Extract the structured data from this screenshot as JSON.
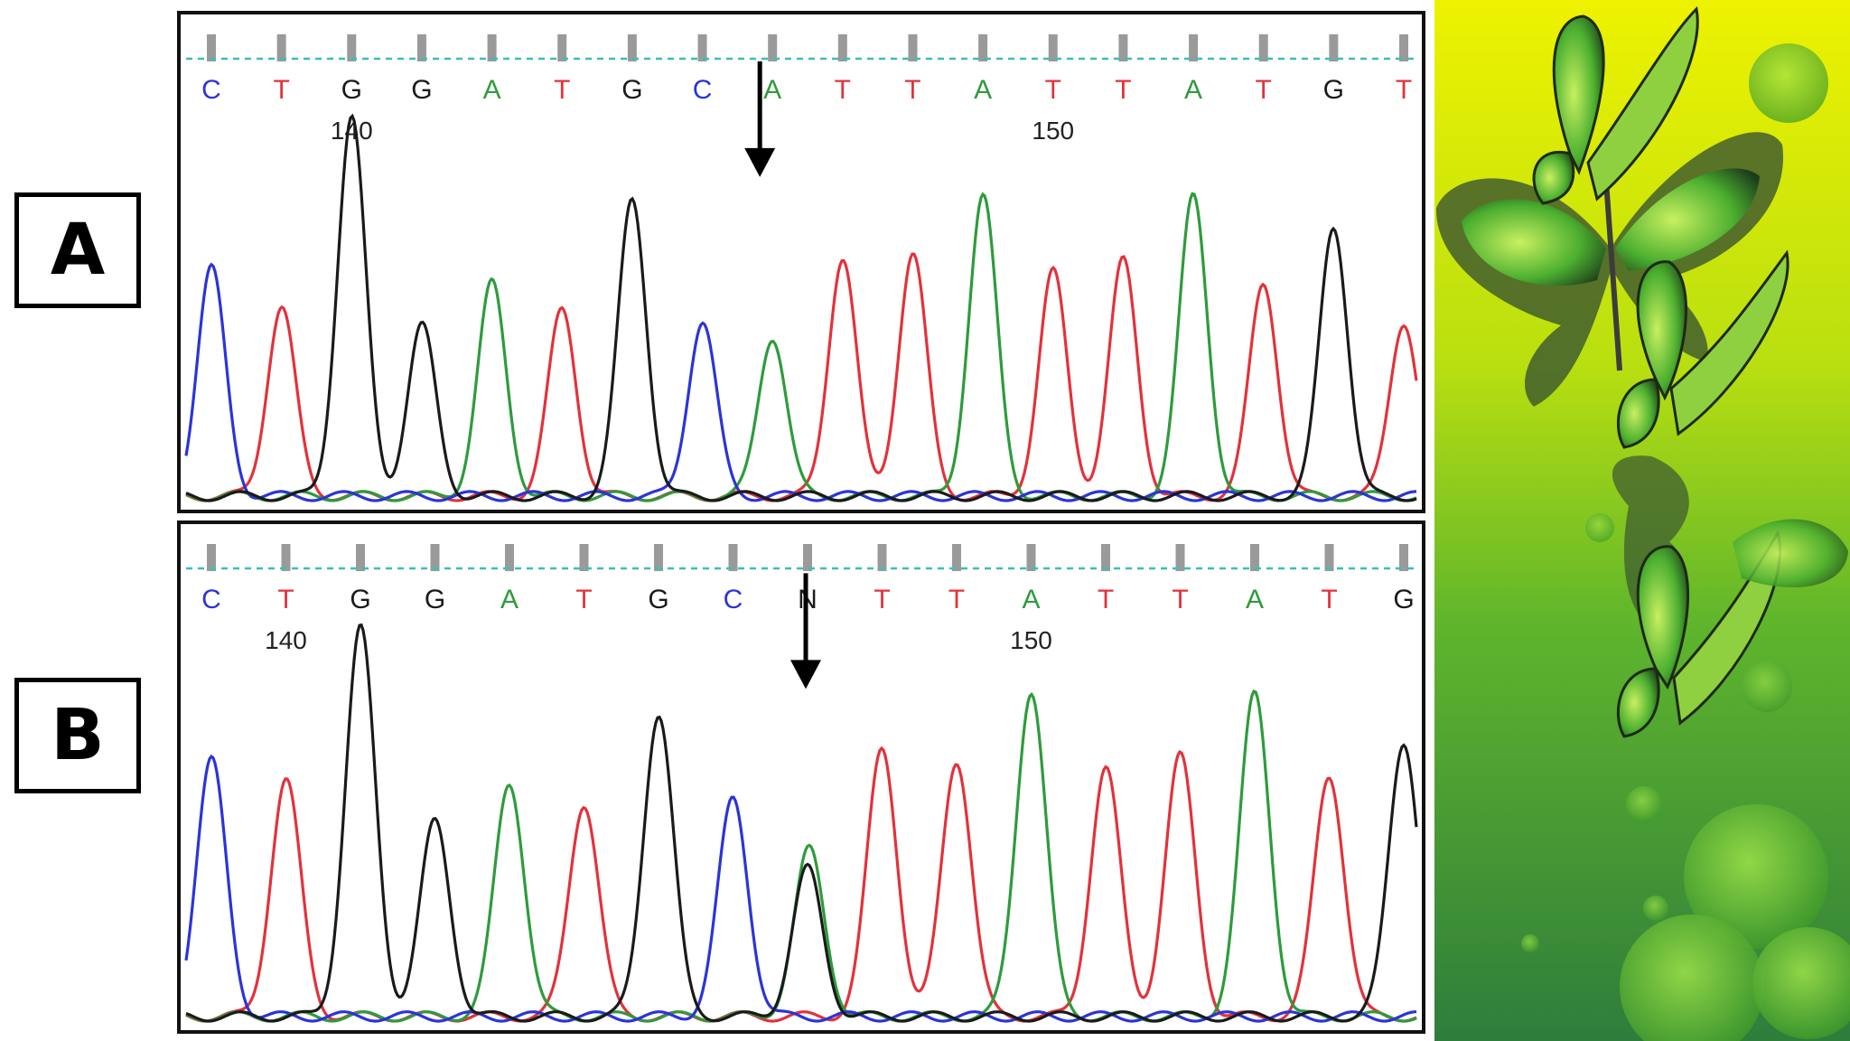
{
  "labels": {
    "a": "A",
    "b": "B"
  },
  "colors": {
    "A": "#2e9b3c",
    "C": "#2b34d8",
    "G": "#1a1a1a",
    "T": "#e2323b",
    "N": "#1a1a1a"
  },
  "chart_data": [
    {
      "type": "line",
      "panel": "A",
      "bases": [
        "C",
        "T",
        "G",
        "G",
        "A",
        "T",
        "G",
        "C",
        "A",
        "T",
        "T",
        "A",
        "T",
        "T",
        "A",
        "T",
        "G",
        "T"
      ],
      "position_labels": [
        {
          "base_index": 2,
          "text": "140"
        },
        {
          "base_index": 12,
          "text": "150"
        }
      ],
      "peak_heights": [
        0.6,
        0.5,
        1.0,
        0.45,
        0.56,
        0.49,
        0.78,
        0.46,
        0.42,
        0.63,
        0.64,
        0.79,
        0.59,
        0.62,
        0.79,
        0.56,
        0.71,
        0.46
      ],
      "annotation": {
        "type": "arrow",
        "base_index": 8
      }
    },
    {
      "type": "line",
      "panel": "B",
      "bases": [
        "C",
        "T",
        "G",
        "G",
        "A",
        "T",
        "G",
        "C",
        "N",
        "T",
        "T",
        "A",
        "T",
        "T",
        "A",
        "T",
        "G"
      ],
      "position_labels": [
        {
          "base_index": 1,
          "text": "140"
        },
        {
          "base_index": 11,
          "text": "150"
        }
      ],
      "peak_heights": [
        0.66,
        0.61,
        1.0,
        0.5,
        0.6,
        0.55,
        0.78,
        0.56,
        0.38,
        0.69,
        0.66,
        0.84,
        0.64,
        0.67,
        0.83,
        0.62,
        0.71
      ],
      "secondary_peak": {
        "base_index": 8,
        "base": "A",
        "height": 0.38
      },
      "annotation": {
        "type": "arrow",
        "base_index": 8
      }
    }
  ]
}
